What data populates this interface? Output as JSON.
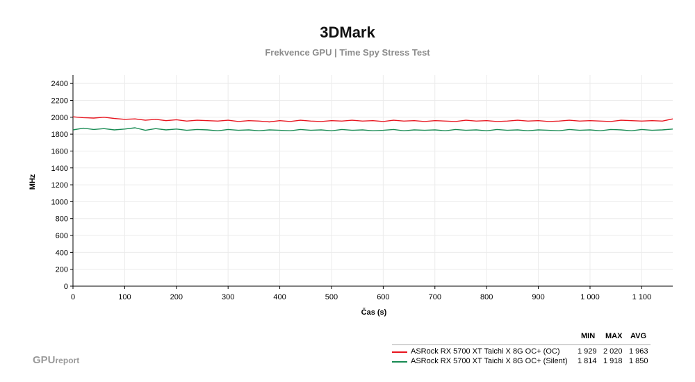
{
  "chart_data": {
    "type": "line",
    "title": "3DMark",
    "subtitle": "Frekvence GPU | Time Spy Stress Test",
    "xlabel": "Čas (s)",
    "ylabel": "MHz",
    "xlim": [
      0,
      1160
    ],
    "ylim": [
      0,
      2500
    ],
    "x_ticks": [
      0,
      100,
      200,
      300,
      400,
      500,
      600,
      700,
      800,
      900,
      1000,
      1100
    ],
    "x_tick_labels": [
      "0",
      "100",
      "200",
      "300",
      "400",
      "500",
      "600",
      "700",
      "800",
      "900",
      "1 000",
      "1 100"
    ],
    "y_ticks": [
      0,
      200,
      400,
      600,
      800,
      1000,
      1200,
      1400,
      1600,
      1800,
      2000,
      2200,
      2400
    ],
    "y_tick_labels": [
      "0",
      "200",
      "400",
      "600",
      "800",
      "1000",
      "1200",
      "1400",
      "1600",
      "1800",
      "2000",
      "2200",
      "2400"
    ],
    "grid": true,
    "legend_position": "bottom-right",
    "legend_headers": [
      "MIN",
      "MAX",
      "AVG"
    ],
    "series": [
      {
        "name": "ASRock RX 5700 XT Taichi X 8G OC+ (OC)",
        "color": "#e8141e",
        "min": "1 929",
        "max": "2 020",
        "avg": "1 963",
        "x": [
          0,
          20,
          40,
          60,
          80,
          100,
          120,
          140,
          160,
          180,
          200,
          220,
          240,
          260,
          280,
          300,
          320,
          340,
          360,
          380,
          400,
          420,
          440,
          460,
          480,
          500,
          520,
          540,
          560,
          580,
          600,
          620,
          640,
          660,
          680,
          700,
          720,
          740,
          760,
          780,
          800,
          820,
          840,
          860,
          880,
          900,
          920,
          940,
          960,
          980,
          1000,
          1020,
          1040,
          1060,
          1080,
          1100,
          1120,
          1140,
          1160
        ],
        "y": [
          2005,
          1995,
          1990,
          2000,
          1985,
          1975,
          1980,
          1965,
          1975,
          1960,
          1970,
          1955,
          1965,
          1960,
          1955,
          1965,
          1950,
          1960,
          1955,
          1945,
          1960,
          1950,
          1965,
          1955,
          1950,
          1960,
          1955,
          1965,
          1955,
          1960,
          1950,
          1965,
          1955,
          1960,
          1950,
          1960,
          1955,
          1950,
          1965,
          1955,
          1960,
          1950,
          1955,
          1965,
          1955,
          1960,
          1950,
          1955,
          1965,
          1955,
          1960,
          1955,
          1950,
          1965,
          1960,
          1955,
          1960,
          1955,
          1980
        ]
      },
      {
        "name": "ASRock RX 5700 XT Taichi X 8G OC+ (Silent)",
        "color": "#168a52",
        "min": "1 814",
        "max": "1 918",
        "avg": "1 850",
        "x": [
          0,
          20,
          40,
          60,
          80,
          100,
          120,
          140,
          160,
          180,
          200,
          220,
          240,
          260,
          280,
          300,
          320,
          340,
          360,
          380,
          400,
          420,
          440,
          460,
          480,
          500,
          520,
          540,
          560,
          580,
          600,
          620,
          640,
          660,
          680,
          700,
          720,
          740,
          760,
          780,
          800,
          820,
          840,
          860,
          880,
          900,
          920,
          940,
          960,
          980,
          1000,
          1020,
          1040,
          1060,
          1080,
          1100,
          1120,
          1140,
          1160
        ],
        "y": [
          1850,
          1870,
          1855,
          1865,
          1850,
          1860,
          1875,
          1845,
          1865,
          1850,
          1860,
          1845,
          1855,
          1850,
          1840,
          1855,
          1845,
          1850,
          1840,
          1850,
          1845,
          1840,
          1855,
          1845,
          1850,
          1840,
          1855,
          1845,
          1850,
          1840,
          1845,
          1855,
          1840,
          1850,
          1845,
          1850,
          1840,
          1855,
          1845,
          1850,
          1840,
          1855,
          1845,
          1850,
          1840,
          1850,
          1845,
          1840,
          1855,
          1845,
          1850,
          1840,
          1855,
          1850,
          1840,
          1855,
          1845,
          1850,
          1860
        ]
      }
    ]
  },
  "logo": {
    "part1": "GPU",
    "part2": "report"
  }
}
